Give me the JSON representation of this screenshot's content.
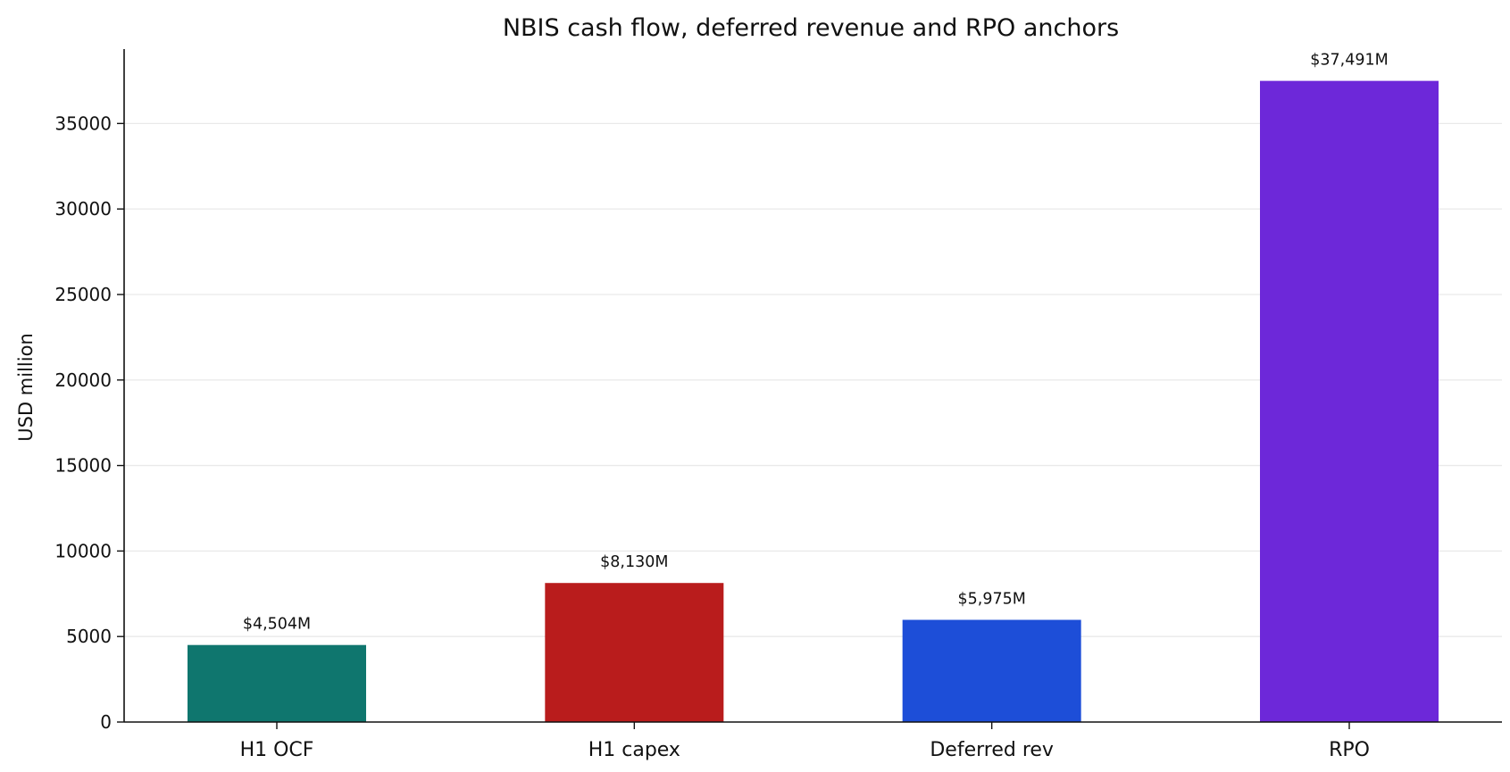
{
  "chart_data": {
    "type": "bar",
    "title": "NBIS cash flow, deferred revenue and RPO anchors",
    "xlabel": "",
    "ylabel": "USD million",
    "categories": [
      "H1 OCF",
      "H1 capex",
      "Deferred rev",
      "RPO"
    ],
    "values": [
      4504,
      8130,
      5975,
      37491
    ],
    "value_labels": [
      "$4,504M",
      "$8,130M",
      "$5,975M",
      "$37,491M"
    ],
    "colors": [
      "#0f766e",
      "#b91c1c",
      "#1d4ed8",
      "#6d28d9"
    ],
    "ylim": [
      0,
      39350
    ],
    "yticks": [
      0,
      5000,
      10000,
      15000,
      20000,
      25000,
      30000,
      35000
    ],
    "ytick_labels": [
      "0",
      "5000",
      "10000",
      "15000",
      "20000",
      "25000",
      "30000",
      "35000"
    ],
    "grid": "horizontal",
    "legend": "none"
  }
}
